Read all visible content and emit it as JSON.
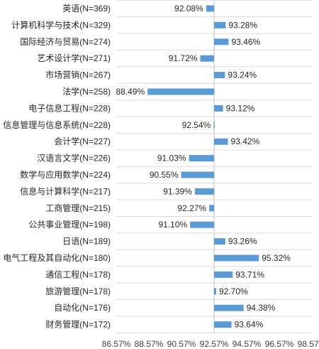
{
  "chart_data": {
    "type": "bar",
    "orientation": "horizontal",
    "baseline": 92.57,
    "unit": "%",
    "bar_color": "#5b9bd5",
    "xlim": [
      86.57,
      98.57
    ],
    "xticks": [
      "86.57%",
      "88.57%",
      "90.57%",
      "92.57%",
      "94.57%",
      "96.57%",
      "98.57%"
    ],
    "xtick_values": [
      86.57,
      88.57,
      90.57,
      92.57,
      94.57,
      96.57,
      98.57
    ],
    "grid": true,
    "categories": [
      "英语(N=369)",
      "计算机科学与技术(N=329)",
      "国际经济与贸易(N=274)",
      "艺术设计学(N=271)",
      "市场营销(N=267)",
      "法学(N=258)",
      "电子信息工程(N=228)",
      "信息管理与信息系统(N=228)",
      "会计学(N=227)",
      "汉语言文学(N=226)",
      "数学与应用数学(N=224)",
      "信息与计算科学(N=217)",
      "工商管理(N=215)",
      "公共事业管理(N=198)",
      "日语(N=189)",
      "电气工程及其自动化(N=180)",
      "通信工程(N=178)",
      "旅游管理(N=178)",
      "自动化(N=176)",
      "财务管理(N=172)"
    ],
    "values": [
      92.08,
      93.28,
      93.46,
      91.72,
      93.24,
      88.49,
      93.12,
      92.54,
      93.42,
      91.03,
      90.55,
      91.39,
      92.27,
      91.1,
      93.26,
      95.32,
      93.71,
      92.7,
      94.38,
      93.64
    ],
    "value_labels": [
      "92.08%",
      "93.28%",
      "93.46%",
      "91.72%",
      "93.24%",
      "88.49%",
      "93.12%",
      "92.54%",
      "93.42%",
      "91.03%",
      "90.55%",
      "91.39%",
      "92.27%",
      "91.10%",
      "93.26%",
      "95.32%",
      "93.71%",
      "92.70%",
      "94.38%",
      "93.64%"
    ]
  }
}
